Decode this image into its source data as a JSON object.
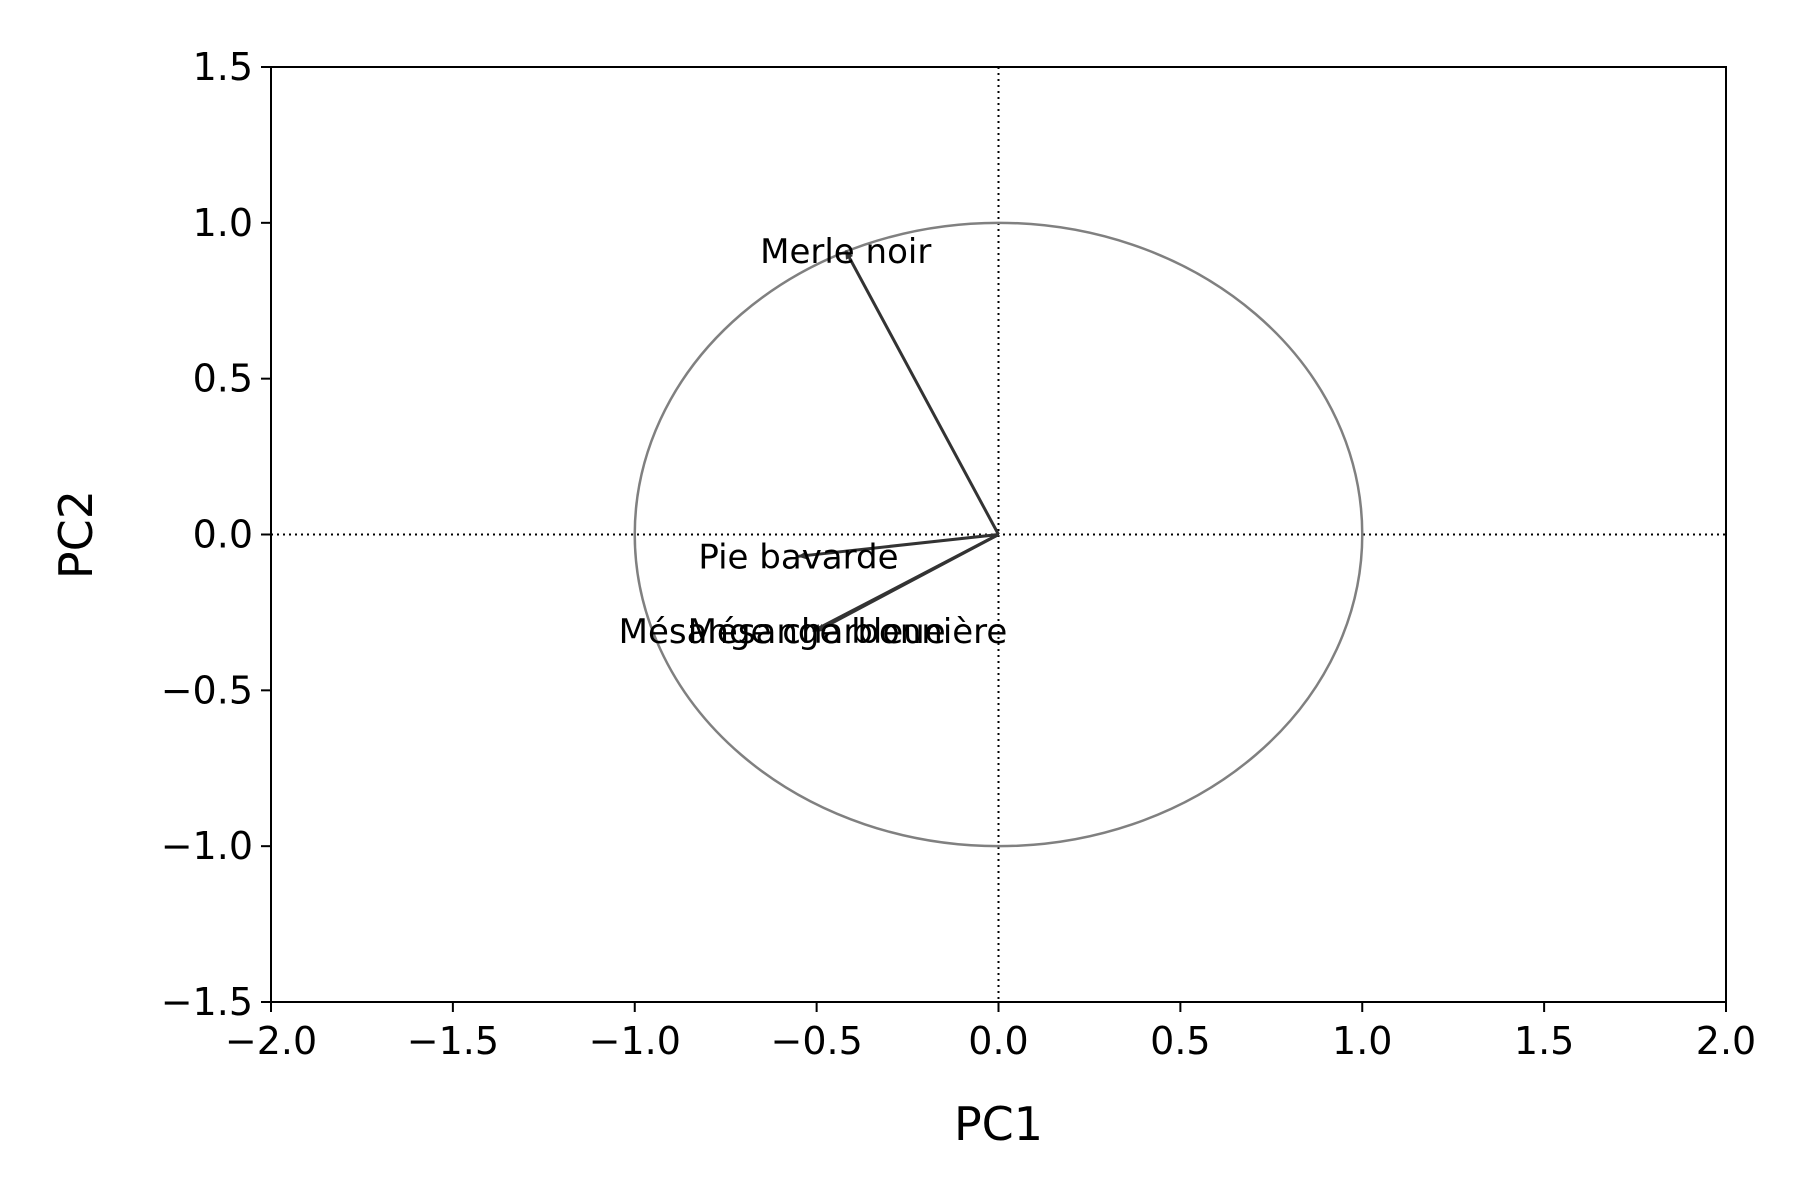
{
  "chart_data": {
    "type": "scatter",
    "title": "",
    "xlabel": "PC1",
    "ylabel": "PC2",
    "xlim": [
      -2.0,
      2.0
    ],
    "ylim": [
      -1.5,
      1.5
    ],
    "xticks": [
      -2.0,
      -1.5,
      -1.0,
      -0.5,
      0.0,
      0.5,
      1.0,
      1.5,
      2.0
    ],
    "yticks": [
      -1.5,
      -1.0,
      -0.5,
      0.0,
      0.5,
      1.0,
      1.5
    ],
    "xtick_labels": [
      "−2.0",
      "−1.5",
      "−1.0",
      "−0.5",
      "0.0",
      "0.5",
      "1.0",
      "1.5",
      "2.0"
    ],
    "ytick_labels": [
      "−1.5",
      "−1.0",
      "−0.5",
      "0.0",
      "0.5",
      "1.0",
      "1.5"
    ],
    "grid": false,
    "reference_lines": {
      "x": 0.0,
      "y": 0.0,
      "style": "dotted"
    },
    "unit_circle": {
      "radius": 1.0,
      "color": "#808080"
    },
    "arrow_color": "#333333",
    "vectors": [
      {
        "label": "Merle noir",
        "x": -0.42,
        "y": 0.91
      },
      {
        "label": "Pie bavarde",
        "x": -0.55,
        "y": -0.07
      },
      {
        "label": "Mésange charbonnière",
        "x": -0.51,
        "y": -0.31
      },
      {
        "label": "Mésange bleue",
        "x": -0.5,
        "y": -0.31
      }
    ]
  }
}
